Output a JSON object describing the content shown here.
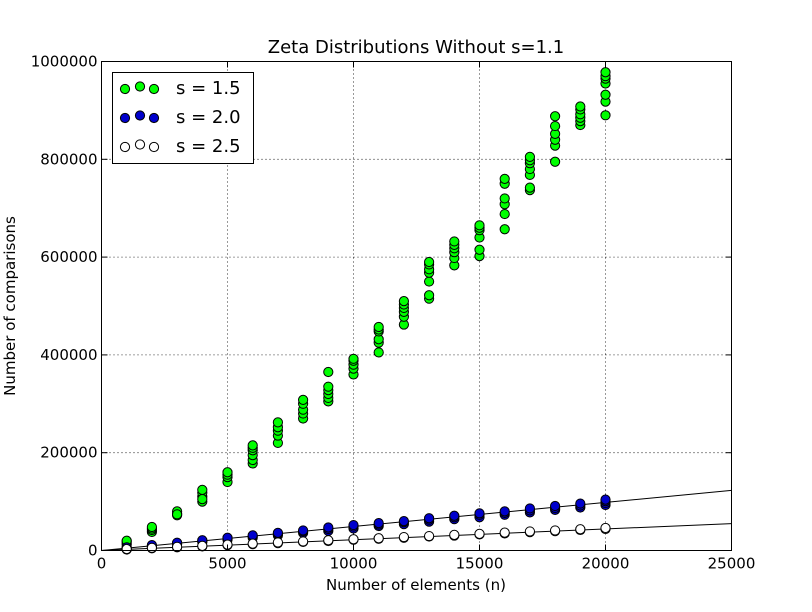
{
  "chart_data": {
    "type": "scatter",
    "title": "Zeta Distributions Without s=1.1",
    "xlabel": "Number of elements (n)",
    "ylabel": "Number of comparisons",
    "xlim": [
      0,
      25000
    ],
    "ylim": [
      0,
      1000000
    ],
    "xticks": [
      0,
      5000,
      10000,
      15000,
      20000,
      25000
    ],
    "yticks": [
      0,
      200000,
      400000,
      600000,
      800000,
      1000000
    ],
    "grid": true,
    "legend_position": "top-left",
    "series": [
      {
        "name": "s = 1.5",
        "color": "#00ff00",
        "points": [
          [
            1000,
            12000
          ],
          [
            1000,
            15000
          ],
          [
            1000,
            18000
          ],
          [
            1000,
            20000
          ],
          [
            2000,
            38000
          ],
          [
            2000,
            42000
          ],
          [
            2000,
            45000
          ],
          [
            2000,
            48000
          ],
          [
            3000,
            72000
          ],
          [
            3000,
            76000
          ],
          [
            3000,
            80000
          ],
          [
            3000,
            74000
          ],
          [
            4000,
            100000
          ],
          [
            4000,
            110000
          ],
          [
            4000,
            118000
          ],
          [
            4000,
            124000
          ],
          [
            4000,
            105000
          ],
          [
            5000,
            140000
          ],
          [
            5000,
            150000
          ],
          [
            5000,
            155000
          ],
          [
            5000,
            160000
          ],
          [
            6000,
            178000
          ],
          [
            6000,
            185000
          ],
          [
            6000,
            195000
          ],
          [
            6000,
            205000
          ],
          [
            6000,
            210000
          ],
          [
            6000,
            215000
          ],
          [
            7000,
            220000
          ],
          [
            7000,
            235000
          ],
          [
            7000,
            245000
          ],
          [
            7000,
            252000
          ],
          [
            7000,
            262000
          ],
          [
            8000,
            270000
          ],
          [
            8000,
            280000
          ],
          [
            8000,
            288000
          ],
          [
            8000,
            300000
          ],
          [
            8000,
            308000
          ],
          [
            9000,
            305000
          ],
          [
            9000,
            312000
          ],
          [
            9000,
            320000
          ],
          [
            9000,
            328000
          ],
          [
            9000,
            335000
          ],
          [
            9000,
            365000
          ],
          [
            10000,
            360000
          ],
          [
            10000,
            372000
          ],
          [
            10000,
            380000
          ],
          [
            10000,
            388000
          ],
          [
            10000,
            392000
          ],
          [
            11000,
            405000
          ],
          [
            11000,
            425000
          ],
          [
            11000,
            432000
          ],
          [
            11000,
            448000
          ],
          [
            11000,
            452000
          ],
          [
            11000,
            457000
          ],
          [
            12000,
            462000
          ],
          [
            12000,
            478000
          ],
          [
            12000,
            488000
          ],
          [
            12000,
            496000
          ],
          [
            12000,
            503000
          ],
          [
            12000,
            510000
          ],
          [
            13000,
            515000
          ],
          [
            13000,
            522000
          ],
          [
            13000,
            550000
          ],
          [
            13000,
            568000
          ],
          [
            13000,
            575000
          ],
          [
            13000,
            585000
          ],
          [
            13000,
            590000
          ],
          [
            14000,
            583000
          ],
          [
            14000,
            598000
          ],
          [
            14000,
            610000
          ],
          [
            14000,
            618000
          ],
          [
            14000,
            625000
          ],
          [
            14000,
            632000
          ],
          [
            15000,
            602000
          ],
          [
            15000,
            615000
          ],
          [
            15000,
            640000
          ],
          [
            15000,
            655000
          ],
          [
            15000,
            660000
          ],
          [
            15000,
            665000
          ],
          [
            16000,
            657000
          ],
          [
            16000,
            688000
          ],
          [
            16000,
            708000
          ],
          [
            16000,
            720000
          ],
          [
            16000,
            750000
          ],
          [
            16000,
            760000
          ],
          [
            17000,
            737000
          ],
          [
            17000,
            742000
          ],
          [
            17000,
            768000
          ],
          [
            17000,
            780000
          ],
          [
            17000,
            792000
          ],
          [
            17000,
            798000
          ],
          [
            17000,
            805000
          ],
          [
            18000,
            795000
          ],
          [
            18000,
            828000
          ],
          [
            18000,
            840000
          ],
          [
            18000,
            852000
          ],
          [
            18000,
            868000
          ],
          [
            18000,
            888000
          ],
          [
            19000,
            870000
          ],
          [
            19000,
            878000
          ],
          [
            19000,
            885000
          ],
          [
            19000,
            892000
          ],
          [
            19000,
            902000
          ],
          [
            19000,
            908000
          ],
          [
            20000,
            890000
          ],
          [
            20000,
            918000
          ],
          [
            20000,
            932000
          ],
          [
            20000,
            955000
          ],
          [
            20000,
            965000
          ],
          [
            20000,
            970000
          ],
          [
            20000,
            978000
          ]
        ]
      },
      {
        "name": "s = 2.0",
        "color": "#0000cc",
        "fit_line": [
          [
            0,
            0
          ],
          [
            25000,
            123000
          ]
        ],
        "points": [
          [
            1000,
            4000
          ],
          [
            1000,
            5500
          ],
          [
            1000,
            6500
          ],
          [
            2000,
            8000
          ],
          [
            2000,
            10000
          ],
          [
            2000,
            11000
          ],
          [
            3000,
            13000
          ],
          [
            3000,
            15000
          ],
          [
            3000,
            16000
          ],
          [
            4000,
            17000
          ],
          [
            4000,
            19000
          ],
          [
            4000,
            21000
          ],
          [
            5000,
            22000
          ],
          [
            5000,
            24000
          ],
          [
            5000,
            26000
          ],
          [
            6000,
            26000
          ],
          [
            6000,
            29000
          ],
          [
            6000,
            31000
          ],
          [
            7000,
            31000
          ],
          [
            7000,
            34000
          ],
          [
            7000,
            36000
          ],
          [
            8000,
            36000
          ],
          [
            8000,
            39000
          ],
          [
            8000,
            41000
          ],
          [
            9000,
            40000
          ],
          [
            9000,
            44000
          ],
          [
            9000,
            47000
          ],
          [
            10000,
            45000
          ],
          [
            10000,
            49000
          ],
          [
            10000,
            52000
          ],
          [
            11000,
            50000
          ],
          [
            11000,
            53000
          ],
          [
            11000,
            56000
          ],
          [
            12000,
            54000
          ],
          [
            12000,
            58000
          ],
          [
            12000,
            60000
          ],
          [
            13000,
            59000
          ],
          [
            13000,
            63000
          ],
          [
            13000,
            66000
          ],
          [
            14000,
            64000
          ],
          [
            14000,
            68000
          ],
          [
            14000,
            71000
          ],
          [
            15000,
            68000
          ],
          [
            15000,
            73000
          ],
          [
            15000,
            76000
          ],
          [
            16000,
            73000
          ],
          [
            16000,
            77000
          ],
          [
            16000,
            80000
          ],
          [
            17000,
            78000
          ],
          [
            17000,
            82000
          ],
          [
            17000,
            86000
          ],
          [
            18000,
            83000
          ],
          [
            18000,
            87000
          ],
          [
            18000,
            91000
          ],
          [
            19000,
            88000
          ],
          [
            19000,
            92000
          ],
          [
            19000,
            96000
          ],
          [
            20000,
            93000
          ],
          [
            20000,
            97000
          ],
          [
            20000,
            101000
          ],
          [
            20000,
            104000
          ]
        ]
      },
      {
        "name": "s = 2.5",
        "color": "#ffffff",
        "fit_line": [
          [
            0,
            0
          ],
          [
            25000,
            55000
          ]
        ],
        "points": [
          [
            1000,
            2000
          ],
          [
            1000,
            3000
          ],
          [
            2000,
            4500
          ],
          [
            2000,
            5500
          ],
          [
            3000,
            6500
          ],
          [
            3000,
            7500
          ],
          [
            4000,
            8500
          ],
          [
            4000,
            9500
          ],
          [
            5000,
            11000
          ],
          [
            5000,
            12000
          ],
          [
            6000,
            13000
          ],
          [
            6000,
            14000
          ],
          [
            7000,
            15000
          ],
          [
            7000,
            16500
          ],
          [
            8000,
            17500
          ],
          [
            8000,
            18500
          ],
          [
            9000,
            19500
          ],
          [
            9000,
            21000
          ],
          [
            10000,
            22000
          ],
          [
            10000,
            23000
          ],
          [
            11000,
            24000
          ],
          [
            11000,
            25000
          ],
          [
            12000,
            26000
          ],
          [
            12000,
            27500
          ],
          [
            13000,
            28500
          ],
          [
            13000,
            29500
          ],
          [
            14000,
            30500
          ],
          [
            14000,
            32000
          ],
          [
            15000,
            33000
          ],
          [
            15000,
            34000
          ],
          [
            16000,
            35000
          ],
          [
            16000,
            36500
          ],
          [
            17000,
            37500
          ],
          [
            17000,
            39000
          ],
          [
            18000,
            39500
          ],
          [
            18000,
            41000
          ],
          [
            19000,
            42000
          ],
          [
            19000,
            43500
          ],
          [
            20000,
            44000
          ],
          [
            20000,
            46000
          ]
        ]
      }
    ]
  }
}
